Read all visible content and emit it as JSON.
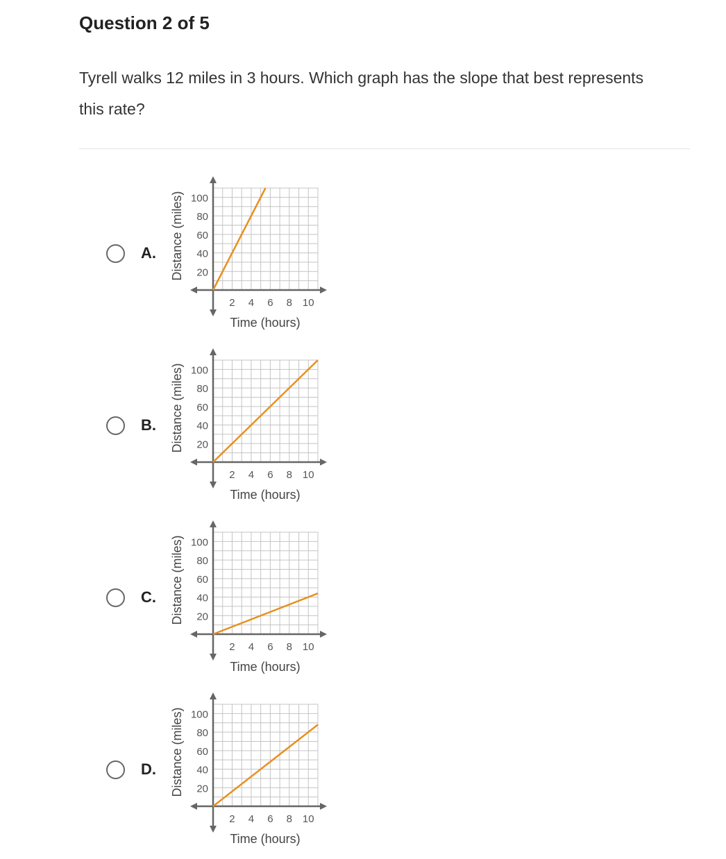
{
  "header": {
    "title": "Question 2 of 5"
  },
  "question": {
    "text": "Tyrell walks 12 miles in 3 hours. Which graph has the slope that best represents this rate?"
  },
  "options": [
    {
      "letter": "A.",
      "selected": false
    },
    {
      "letter": "B.",
      "selected": false
    },
    {
      "letter": "C.",
      "selected": false
    },
    {
      "letter": "D.",
      "selected": false
    }
  ],
  "chart_data": [
    {
      "type": "line",
      "xlabel": "Time (hours)",
      "ylabel": "Distance (miles)",
      "xlim": [
        0,
        11
      ],
      "ylim": [
        0,
        110
      ],
      "xticks": [
        2,
        4,
        6,
        8,
        10
      ],
      "yticks": [
        20,
        40,
        60,
        80,
        100
      ],
      "grid": true,
      "line_color": "#e8901e",
      "series": [
        {
          "x": [
            0,
            5.5
          ],
          "y": [
            0,
            110
          ]
        }
      ]
    },
    {
      "type": "line",
      "xlabel": "Time (hours)",
      "ylabel": "Distance (miles)",
      "xlim": [
        0,
        11
      ],
      "ylim": [
        0,
        110
      ],
      "xticks": [
        2,
        4,
        6,
        8,
        10
      ],
      "yticks": [
        20,
        40,
        60,
        80,
        100
      ],
      "grid": true,
      "line_color": "#e8901e",
      "series": [
        {
          "x": [
            0,
            11
          ],
          "y": [
            0,
            110
          ]
        }
      ]
    },
    {
      "type": "line",
      "xlabel": "Time (hours)",
      "ylabel": "Distance (miles)",
      "xlim": [
        0,
        11
      ],
      "ylim": [
        0,
        110
      ],
      "xticks": [
        2,
        4,
        6,
        8,
        10
      ],
      "yticks": [
        20,
        40,
        60,
        80,
        100
      ],
      "grid": true,
      "line_color": "#e8901e",
      "series": [
        {
          "x": [
            0,
            11
          ],
          "y": [
            0,
            44
          ]
        }
      ]
    },
    {
      "type": "line",
      "xlabel": "Time (hours)",
      "ylabel": "Distance (miles)",
      "xlim": [
        0,
        11
      ],
      "ylim": [
        0,
        110
      ],
      "xticks": [
        2,
        4,
        6,
        8,
        10
      ],
      "yticks": [
        20,
        40,
        60,
        80,
        100
      ],
      "grid": true,
      "line_color": "#e8901e",
      "series": [
        {
          "x": [
            0,
            11
          ],
          "y": [
            0,
            88
          ]
        }
      ]
    }
  ]
}
